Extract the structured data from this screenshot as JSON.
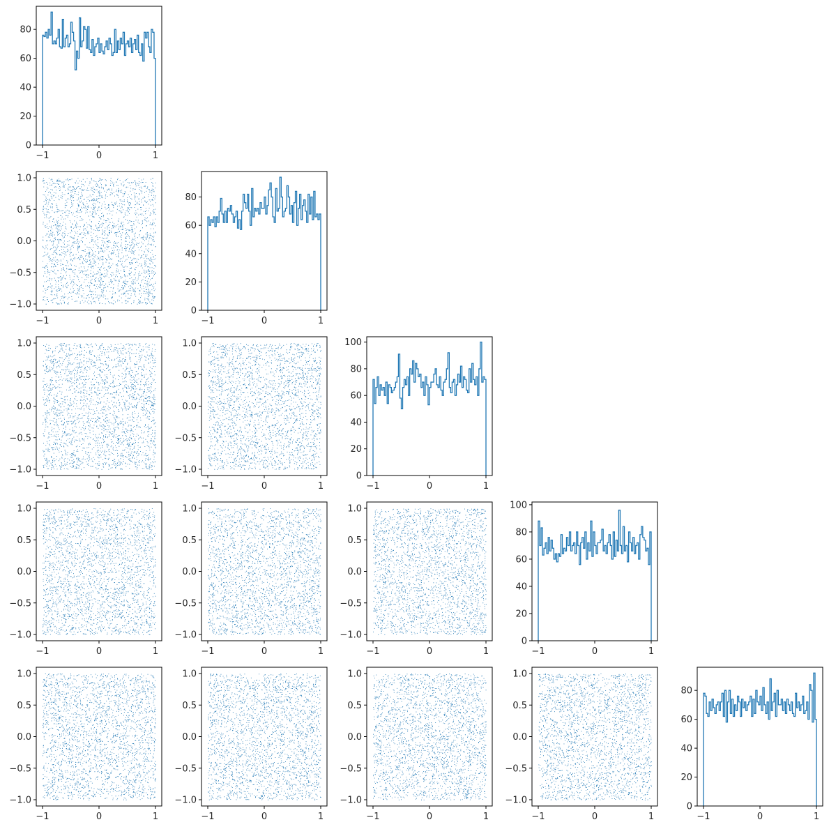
{
  "chart_data": {
    "type": "corner",
    "n_dims": 5,
    "n_samples": 6000,
    "marker_color": "#1f77b4",
    "histogram": {
      "bins": 80,
      "range": [
        -1,
        1
      ],
      "xticks": [
        -1,
        0,
        1
      ],
      "histtype": "step"
    },
    "scatter": {
      "xlim": [
        -1,
        1
      ],
      "ylim": [
        -1,
        1
      ],
      "xticks": [
        -1,
        0,
        1
      ],
      "yticks": [
        "-1.0",
        "-0.5",
        "0.0",
        "0.5",
        "1.0"
      ]
    },
    "diagonal": [
      {
        "dim": 0,
        "ylim": [
          0,
          96
        ],
        "yticks": [
          0,
          20,
          40,
          60,
          80
        ],
        "counts": [
          76,
          75,
          78,
          74,
          80,
          76,
          92,
          70,
          72,
          70,
          74,
          80,
          68,
          67,
          87,
          68,
          74,
          76,
          68,
          70,
          85,
          78,
          72,
          52,
          65,
          60,
          88,
          68,
          72,
          82,
          80,
          67,
          82,
          66,
          64,
          73,
          62,
          68,
          70,
          74,
          64,
          70,
          65,
          63,
          68,
          72,
          66,
          74,
          70,
          62,
          64,
          80,
          64,
          72,
          66,
          74,
          70,
          78,
          62,
          70,
          72,
          68,
          74,
          64,
          70,
          73,
          66,
          76,
          64,
          62,
          70,
          58,
          78,
          74,
          78,
          68,
          64,
          80,
          78,
          60
        ]
      },
      {
        "dim": 1,
        "ylim": [
          0,
          98
        ],
        "yticks": [
          0,
          20,
          40,
          60,
          80
        ],
        "counts": [
          66,
          60,
          64,
          62,
          66,
          59,
          66,
          62,
          70,
          79,
          68,
          62,
          70,
          62,
          72,
          70,
          74,
          68,
          62,
          66,
          70,
          58,
          64,
          57,
          70,
          82,
          76,
          72,
          82,
          70,
          60,
          86,
          66,
          72,
          70,
          72,
          68,
          76,
          72,
          72,
          80,
          68,
          74,
          85,
          90,
          80,
          66,
          62,
          86,
          70,
          72,
          94,
          80,
          66,
          70,
          72,
          88,
          80,
          68,
          74,
          62,
          76,
          84,
          60,
          72,
          82,
          64,
          74,
          78,
          70,
          62,
          82,
          68,
          80,
          64,
          84,
          66,
          68,
          64,
          68
        ]
      },
      {
        "dim": 2,
        "ylim": [
          0,
          104
        ],
        "yticks": [
          0,
          20,
          40,
          60,
          80,
          100
        ],
        "counts": [
          72,
          54,
          66,
          74,
          60,
          68,
          64,
          66,
          60,
          70,
          54,
          68,
          66,
          62,
          64,
          66,
          70,
          74,
          91,
          58,
          50,
          66,
          72,
          68,
          74,
          60,
          80,
          76,
          86,
          70,
          84,
          80,
          74,
          76,
          66,
          70,
          60,
          74,
          68,
          53,
          66,
          70,
          70,
          76,
          80,
          68,
          66,
          74,
          64,
          60,
          70,
          72,
          80,
          92,
          66,
          62,
          70,
          72,
          60,
          68,
          76,
          70,
          82,
          66,
          74,
          72,
          64,
          62,
          80,
          70,
          84,
          72,
          68,
          74,
          60,
          80,
          100,
          70,
          74,
          72
        ]
      },
      {
        "dim": 3,
        "ylim": [
          0,
          102
        ],
        "yticks": [
          0,
          20,
          40,
          60,
          80,
          100
        ],
        "counts": [
          88,
          70,
          83,
          63,
          68,
          72,
          64,
          76,
          66,
          74,
          68,
          60,
          64,
          58,
          64,
          62,
          78,
          64,
          68,
          66,
          76,
          70,
          80,
          66,
          70,
          72,
          64,
          80,
          70,
          56,
          72,
          76,
          68,
          80,
          60,
          72,
          66,
          88,
          62,
          80,
          70,
          64,
          72,
          72,
          74,
          82,
          66,
          70,
          64,
          72,
          78,
          70,
          60,
          80,
          62,
          74,
          66,
          96,
          70,
          64,
          84,
          66,
          70,
          58,
          80,
          72,
          66,
          76,
          64,
          70,
          72,
          60,
          78,
          84,
          76,
          74,
          66,
          68,
          56,
          80
        ]
      },
      {
        "dim": 4,
        "ylim": [
          0,
          96
        ],
        "yticks": [
          0,
          20,
          40,
          60,
          80
        ],
        "counts": [
          78,
          76,
          64,
          62,
          72,
          66,
          74,
          68,
          64,
          70,
          72,
          66,
          72,
          78,
          62,
          80,
          58,
          72,
          80,
          64,
          74,
          62,
          70,
          66,
          76,
          72,
          62,
          74,
          68,
          72,
          66,
          70,
          72,
          76,
          62,
          74,
          64,
          80,
          72,
          70,
          76,
          66,
          82,
          70,
          64,
          72,
          60,
          88,
          66,
          72,
          78,
          62,
          80,
          70,
          70,
          74,
          66,
          72,
          64,
          74,
          70,
          66,
          72,
          64,
          62,
          78,
          68,
          72,
          66,
          70,
          76,
          64,
          66,
          72,
          60,
          84,
          80,
          58,
          92,
          60
        ]
      }
    ]
  }
}
